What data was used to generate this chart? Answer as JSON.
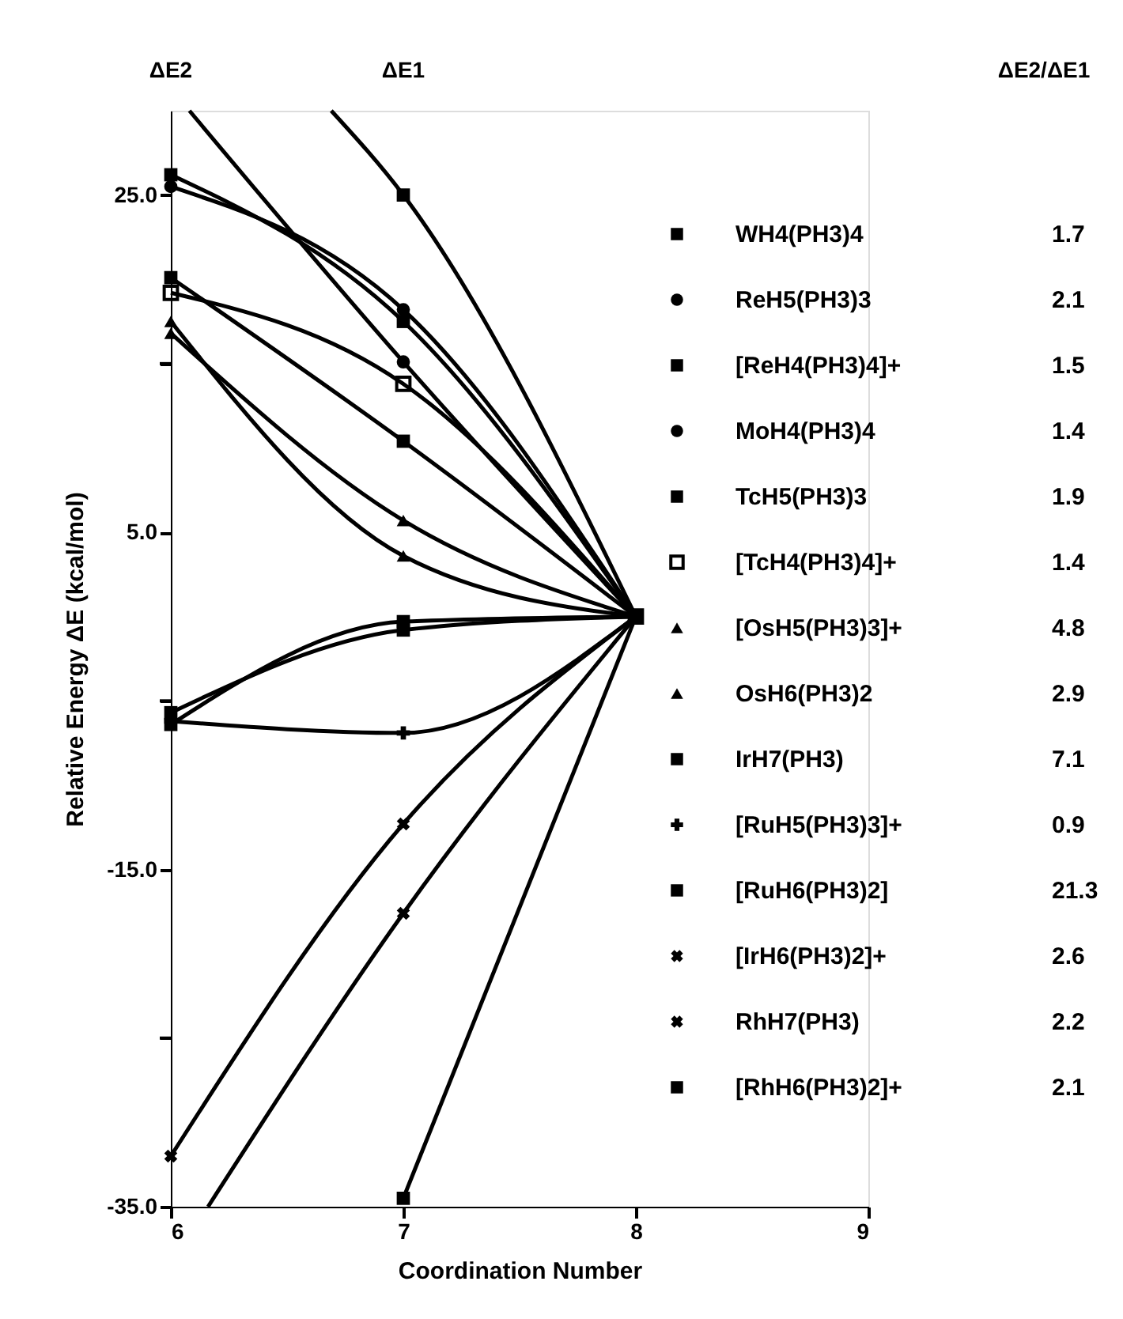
{
  "chart_data": {
    "type": "line",
    "xlabel": "Coordination Number",
    "ylabel": "Relative Energy  ΔE  (kcal/mol)",
    "x": [
      6,
      7,
      8
    ],
    "xlim": [
      6,
      9
    ],
    "xticks": [
      6,
      7,
      8,
      9
    ],
    "ylim": [
      -35,
      30
    ],
    "yticks": [
      {
        "value": 25,
        "label": "25.0"
      },
      {
        "value": 15,
        "label": null
      },
      {
        "value": 5,
        "label": "5.0"
      },
      {
        "value": -5,
        "label": null
      },
      {
        "value": -15,
        "label": "-15.0"
      },
      {
        "value": -25,
        "label": null
      },
      {
        "value": -35,
        "label": "-35.0"
      }
    ],
    "grid": false,
    "legend": "right",
    "legend_title": "ΔE2/ΔE1",
    "annotations": [
      "ΔE2",
      "ΔE1",
      "1.7",
      "2.1",
      "1.5",
      "1.4",
      "1.9",
      "1.4",
      "4.8",
      "2.9",
      "7.1",
      "0.9",
      "21.3",
      "2.6",
      "2.2",
      "2.1"
    ],
    "series": [
      {
        "name": "WH4(PH3)4",
        "color": "#000000",
        "marker": "square",
        "x": [
          6.69,
          7,
          8
        ],
        "values": [
          30,
          25.0,
          0
        ]
      },
      {
        "name": "ReH5(PH3)3",
        "color": "#000000",
        "marker": "circle",
        "x": [
          6.08,
          7,
          8
        ],
        "values": [
          30,
          15.1,
          0
        ]
      },
      {
        "name": "[ReH4(PH3)4]+",
        "color": "#000000",
        "marker": "square",
        "values": [
          26.2,
          17.5,
          0
        ]
      },
      {
        "name": "MoH4(PH3)4",
        "color": "#000000",
        "marker": "circle",
        "values": [
          25.5,
          18.2,
          0
        ]
      },
      {
        "name": "TcH5(PH3)3",
        "color": "#000000",
        "marker": "square",
        "values": [
          20.1,
          10.4,
          0
        ]
      },
      {
        "name": "[TcH4(PH3)4]+",
        "color": "#000000",
        "marker": "square-open",
        "values": [
          19.2,
          13.8,
          0
        ]
      },
      {
        "name": "[OsH5(PH3)3]+",
        "color": "#000000",
        "marker": "triangle",
        "values": [
          17.5,
          3.6,
          0
        ]
      },
      {
        "name": "OsH6(PH3)2",
        "color": "#000000",
        "marker": "triangle",
        "values": [
          16.8,
          5.7,
          0
        ]
      },
      {
        "name": "IrH7(PH3)",
        "color": "#000000",
        "marker": "square",
        "values": [
          -5.7,
          -0.8,
          0
        ]
      },
      {
        "name": "[RuH5(PH3)3]+",
        "color": "#000000",
        "marker": "cross",
        "values": [
          -6.2,
          -6.9,
          0
        ]
      },
      {
        "name": "[RuH6(PH3)2]",
        "color": "#000000",
        "marker": "square",
        "values": [
          -6.4,
          -0.3,
          0
        ]
      },
      {
        "name": "[IrH6(PH3)2]+",
        "color": "#000000",
        "marker": "x",
        "values": [
          -32.0,
          -12.3,
          0
        ]
      },
      {
        "name": "RhH7(PH3)",
        "color": "#000000",
        "marker": "x",
        "x": [
          6.16,
          7,
          8
        ],
        "values": [
          -35,
          -17.6,
          0
        ]
      },
      {
        "name": "[RhH6(PH3)2]+",
        "color": "#000000",
        "marker": "square",
        "x": [
          7,
          8
        ],
        "values": [
          -34.5,
          0
        ]
      }
    ]
  }
}
